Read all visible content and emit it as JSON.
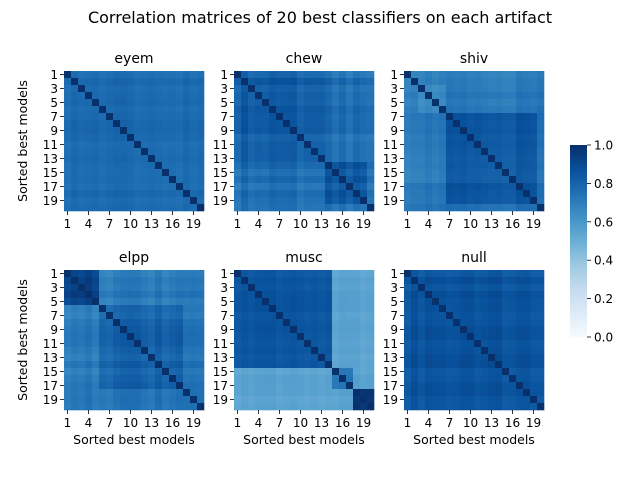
{
  "chart_data": {
    "type": "heatmap",
    "title": "Correlation matrices of 20 best classifiers on each artifact",
    "xlabel": "Sorted best models",
    "ylabel": "Sorted best models",
    "tick_labels": [
      "1",
      "3",
      "5",
      "7",
      "9",
      "11",
      "13",
      "15",
      "17",
      "19"
    ],
    "x_tick_labels": [
      "1",
      "4",
      "7",
      "10",
      "13",
      "16",
      "19"
    ],
    "colorbar": {
      "ticks": [
        "0.0",
        "0.2",
        "0.4",
        "0.6",
        "0.8",
        "1.0"
      ],
      "vmin": 0.0,
      "vmax": 1.0,
      "cmap": "Blues"
    },
    "n_models": 20,
    "panels": [
      {
        "name": "eyem",
        "diag": 1.0,
        "blocks": [
          {
            "start": 0,
            "end": 20,
            "value": 0.78
          }
        ],
        "off": 0.75,
        "noise": 0.04
      },
      {
        "name": "chew",
        "diag": 1.0,
        "blocks": [
          {
            "start": 0,
            "end": 13,
            "value": 0.82
          },
          {
            "start": 13,
            "end": 19,
            "value": 0.85
          }
        ],
        "off": 0.76,
        "noise": 0.07
      },
      {
        "name": "shiv",
        "diag": 1.0,
        "blocks": [
          {
            "start": 2,
            "end": 6,
            "value": 0.66
          },
          {
            "start": 6,
            "end": 19,
            "value": 0.84
          }
        ],
        "off": 0.72,
        "noise": 0.06
      },
      {
        "name": "elpp",
        "diag": 1.0,
        "blocks": [
          {
            "start": 0,
            "end": 5,
            "value": 0.95
          },
          {
            "start": 5,
            "end": 17,
            "value": 0.8
          }
        ],
        "off": 0.72,
        "noise": 0.06
      },
      {
        "name": "musc",
        "diag": 1.0,
        "blocks": [
          {
            "start": 0,
            "end": 14,
            "value": 0.86
          },
          {
            "start": 14,
            "end": 17,
            "value": 0.72
          },
          {
            "start": 17,
            "end": 20,
            "value": 0.98
          }
        ],
        "off": 0.55,
        "noise": 0.03
      },
      {
        "name": "null",
        "diag": 1.0,
        "blocks": [
          {
            "start": 0,
            "end": 20,
            "value": 0.86
          }
        ],
        "off": 0.84,
        "noise": 0.05
      }
    ]
  }
}
